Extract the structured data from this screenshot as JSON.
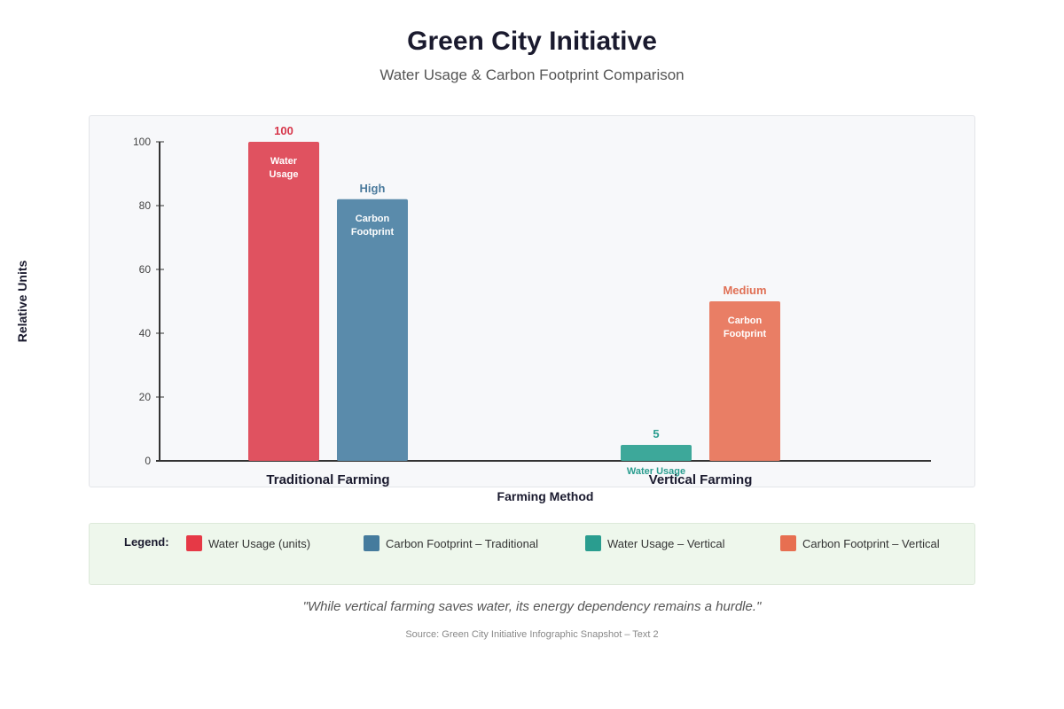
{
  "header": {
    "title": "Green City Initiative",
    "subtitle": "Water Usage & Carbon Footprint Comparison"
  },
  "chart_data": {
    "type": "bar",
    "title": "",
    "xlabel": "Farming Method",
    "ylabel": "Relative Units",
    "ylim": [
      0,
      100
    ],
    "yticks": [
      {
        "value": 0,
        "label": "0"
      },
      {
        "value": 20,
        "label": "20"
      },
      {
        "value": 40,
        "label": "40"
      },
      {
        "value": 60,
        "label": "60"
      },
      {
        "value": 80,
        "label": "80"
      },
      {
        "value": 100,
        "label": "100"
      }
    ],
    "categories": [
      "Traditional Farming",
      "Vertical Farming"
    ],
    "bars": [
      {
        "category": "Traditional Farming",
        "value": 100,
        "top_label": "100",
        "inner_label": "Water\nUsage",
        "color": "#e05260"
      },
      {
        "category": "Traditional Farming",
        "value": 82,
        "top_label": "High",
        "inner_label": "Carbon\nFootprint",
        "color": "#5a8bab"
      },
      {
        "category": "Vertical Farming",
        "value": 5,
        "top_label": "5",
        "inner_label": "Water Usage",
        "color": "#3da89a"
      },
      {
        "category": "Vertical Farming",
        "value": 50,
        "top_label": "Medium",
        "inner_label": "Carbon\nFootprint",
        "color": "#e97e65"
      }
    ],
    "top_label_colors": [
      "#d7364a",
      "#4a7a9c",
      "#2a9d8f",
      "#e07055"
    ],
    "grid": false
  },
  "legend": {
    "title": "Legend:",
    "items": [
      {
        "label": "Water Usage (units)",
        "color": "#e63946"
      },
      {
        "label": "Carbon Footprint – Traditional",
        "color": "#457b9d"
      },
      {
        "label": "Water Usage – Vertical",
        "color": "#2a9d8f"
      },
      {
        "label": "Carbon Footprint – Vertical",
        "color": "#e76f51"
      }
    ]
  },
  "footer": {
    "quote": "\"While vertical farming saves water, its energy dependency remains a hurdle.\"",
    "source": "Source: Green City Initiative Infographic Snapshot – Text 2"
  }
}
